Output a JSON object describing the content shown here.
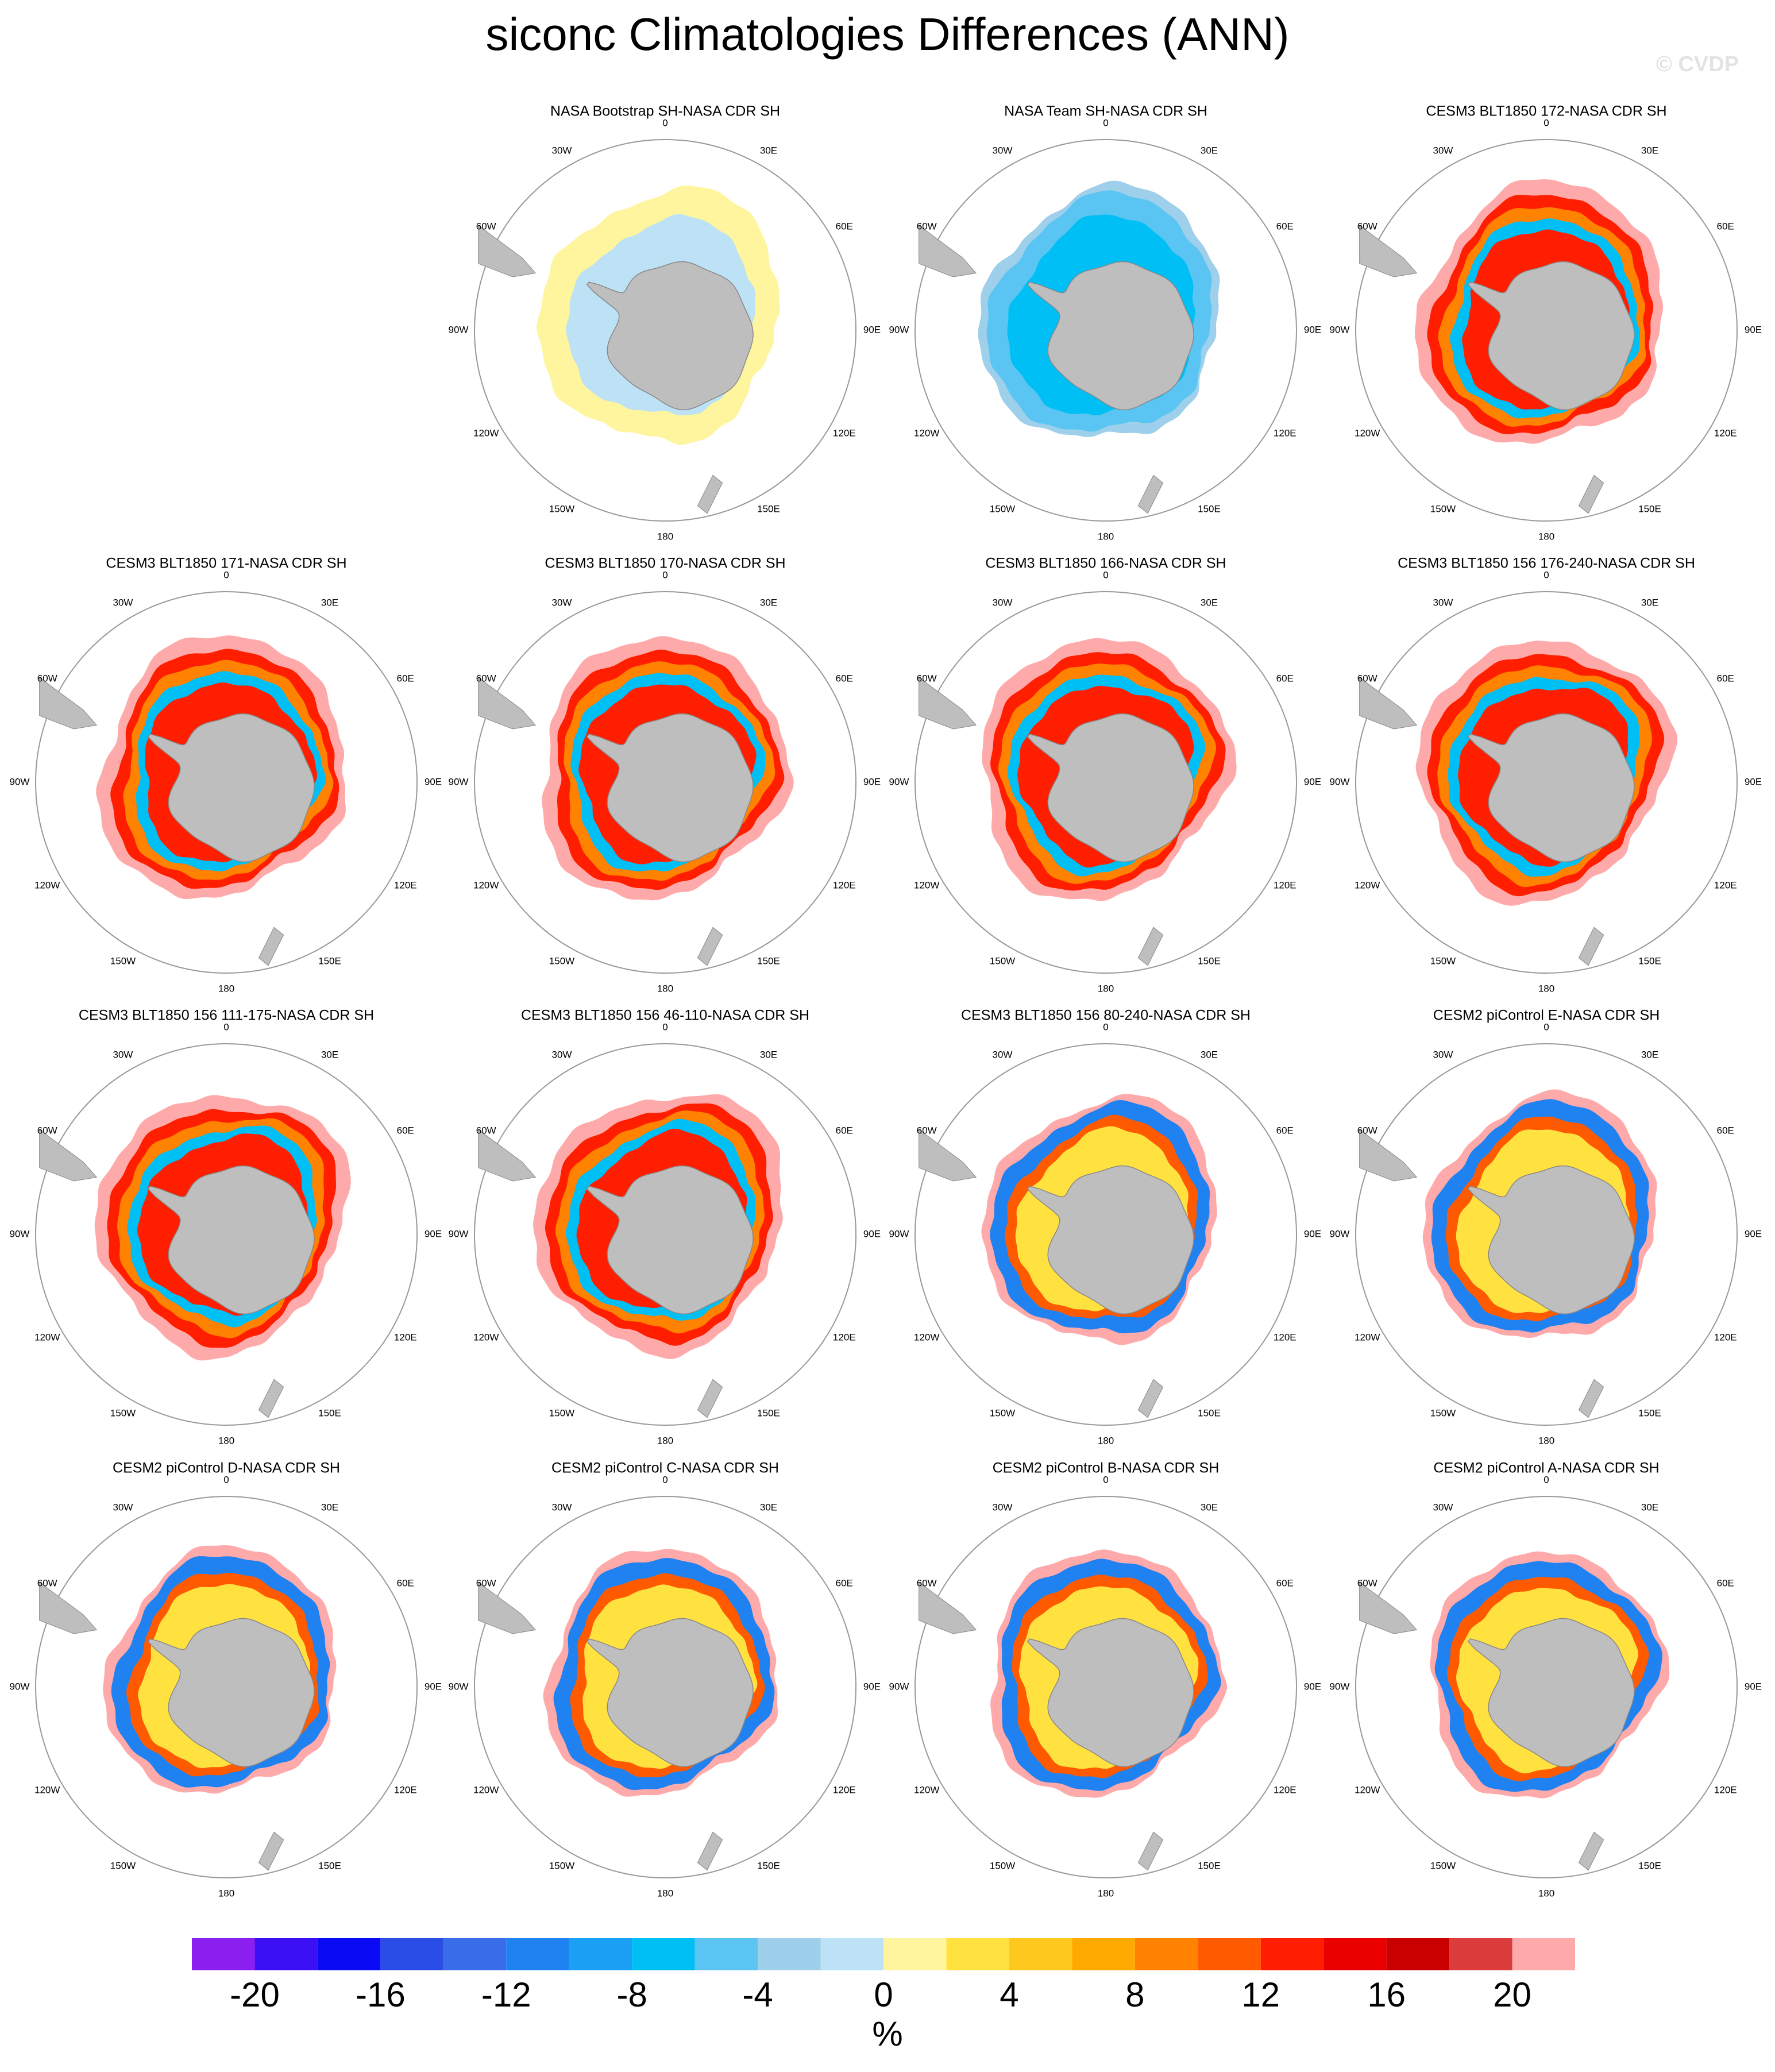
{
  "title": "siconc Climatologies Differences (ANN)",
  "watermark": "© CVDP",
  "lon_labels": [
    "0",
    "30E",
    "60E",
    "90E",
    "120E",
    "150E",
    "180",
    "150W",
    "120W",
    "90W",
    "60W",
    "30W"
  ],
  "panels": [
    {
      "title": "NASA Bootstrap SH-NASA CDR SH"
    },
    {
      "title": "NASA Team SH-NASA CDR SH"
    },
    {
      "title": "CESM3 BLT1850 172-NASA CDR SH"
    },
    {
      "title": "CESM3 BLT1850 171-NASA CDR SH"
    },
    {
      "title": "CESM3 BLT1850 170-NASA CDR SH"
    },
    {
      "title": "CESM3 BLT1850 166-NASA CDR SH"
    },
    {
      "title": "CESM3 BLT1850 156 176-240-NASA CDR SH"
    },
    {
      "title": "CESM3 BLT1850 156 111-175-NASA CDR SH"
    },
    {
      "title": "CESM3 BLT1850 156 46-110-NASA CDR SH"
    },
    {
      "title": "CESM3 BLT1850 156 80-240-NASA CDR SH"
    },
    {
      "title": "CESM2 piControl E-NASA CDR SH"
    },
    {
      "title": "CESM2 piControl D-NASA CDR SH"
    },
    {
      "title": "CESM2 piControl C-NASA CDR SH"
    },
    {
      "title": "CESM2 piControl B-NASA CDR SH"
    },
    {
      "title": "CESM2 piControl A-NASA CDR SH"
    }
  ],
  "colorbar": {
    "label": "%",
    "levels": [
      -22,
      -20,
      -18,
      -16,
      -14,
      -12,
      -10,
      -8,
      -6,
      -4,
      -2,
      0,
      2,
      4,
      6,
      8,
      10,
      12,
      14,
      16,
      18,
      20,
      22
    ],
    "ticks": [
      -20,
      -16,
      -12,
      -8,
      -4,
      0,
      4,
      8,
      12,
      16,
      20
    ],
    "colors": [
      "#8a1ff0",
      "#3c10f5",
      "#0a0af5",
      "#2a4de6",
      "#3a6ee8",
      "#2081f0",
      "#1aa0f5",
      "#00bff5",
      "#5ac5f2",
      "#9ecfeb",
      "#bde2f5",
      "#fff59e",
      "#ffe140",
      "#ffc81e",
      "#ffaa00",
      "#ff8200",
      "#ff5a00",
      "#ff1e00",
      "#eb0000",
      "#c80000",
      "#dc3c3c",
      "#ffaaaa"
    ]
  }
}
